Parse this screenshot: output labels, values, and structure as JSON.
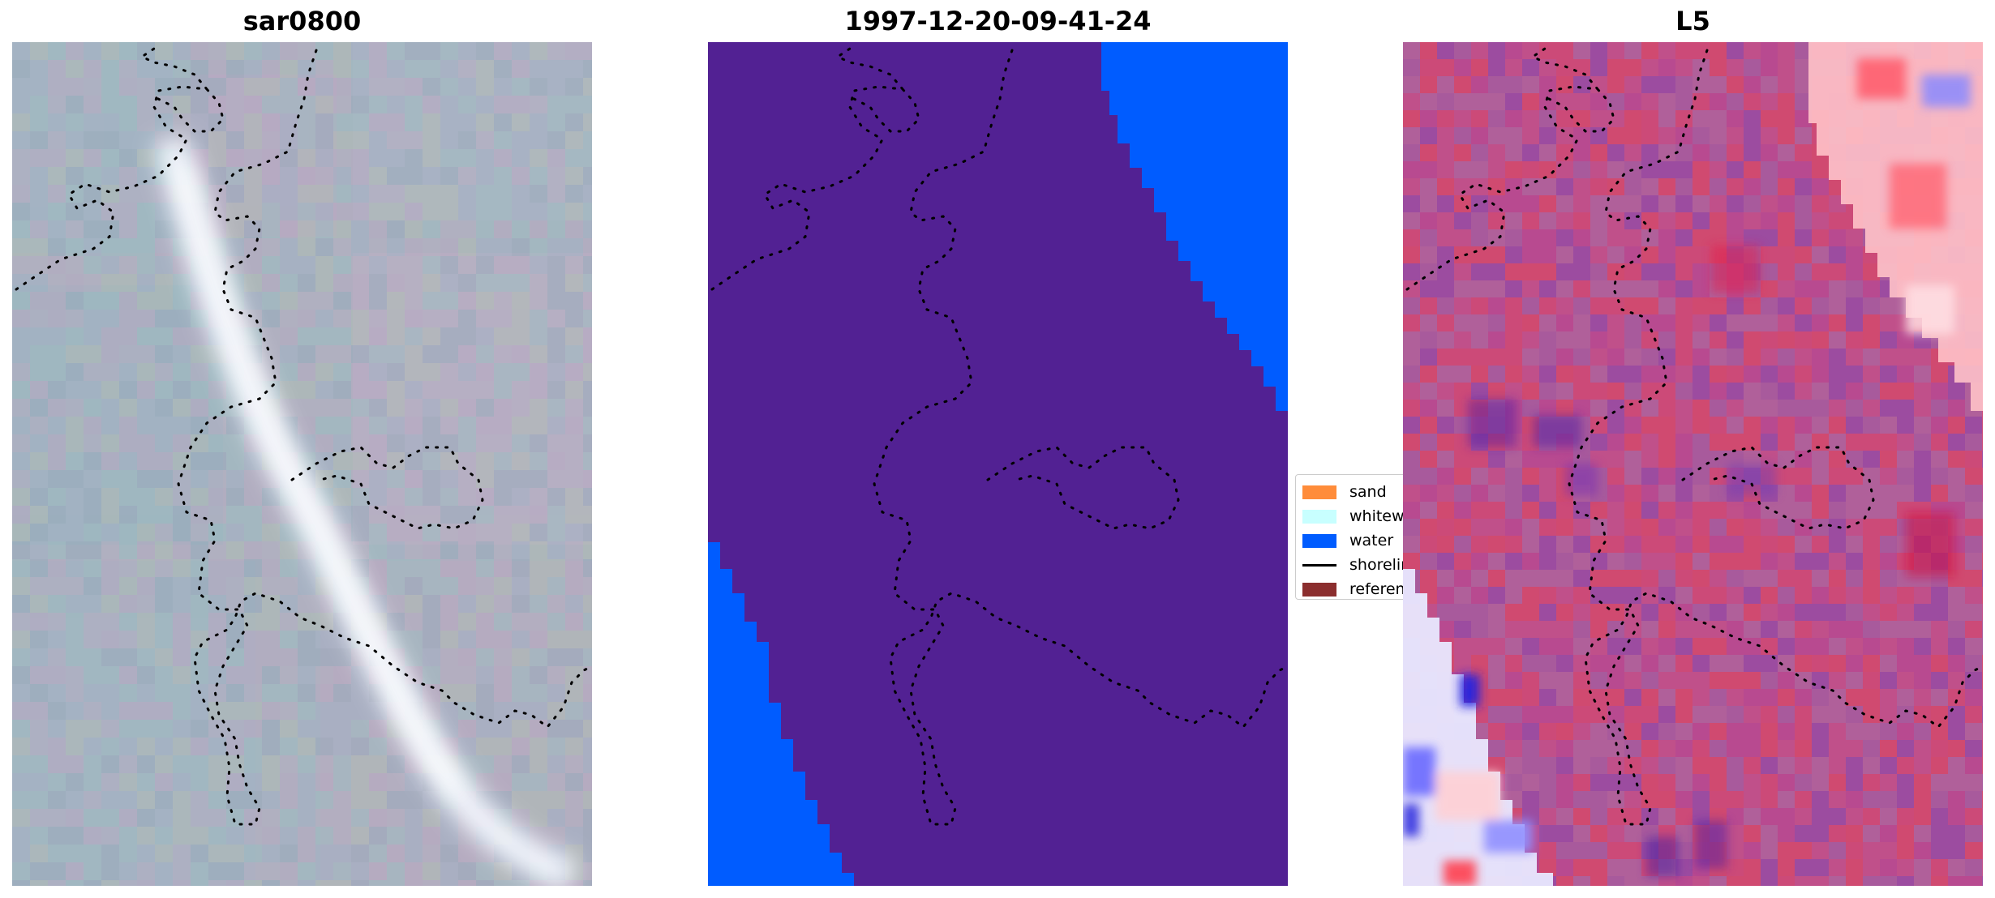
{
  "panels": [
    {
      "title": "sar0800"
    },
    {
      "title": "1997-12-20-09-41-24"
    },
    {
      "title": "L5"
    }
  ],
  "legend": {
    "items": [
      {
        "label": "sand",
        "color": "#ff8c3a",
        "kind": "patch"
      },
      {
        "label": "whitewater",
        "color": "#c8ffff",
        "kind": "patch"
      },
      {
        "label": "water",
        "color": "#005cff",
        "kind": "patch"
      },
      {
        "label": "shoreline",
        "color": "#000000",
        "kind": "line"
      },
      {
        "label": "reference",
        "color": "#8b2e2e",
        "kind": "patch"
      }
    ]
  },
  "colors": {
    "land_class": "#522193",
    "water_class": "#005cff",
    "shoreline": "#000000"
  }
}
